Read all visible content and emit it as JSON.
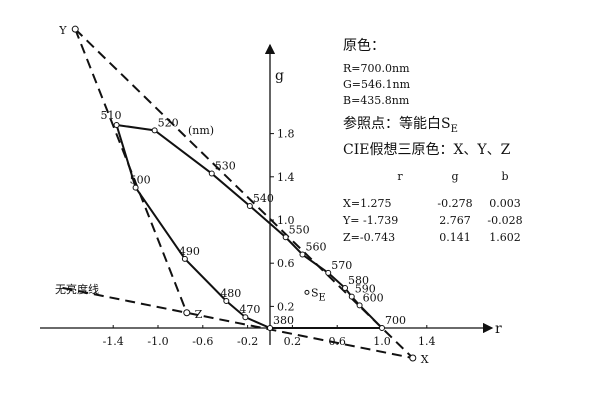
{
  "axes": {
    "x_label": "r",
    "y_label": "g",
    "xticks": [
      -1.4,
      {
        "value": -1,
        "label": "-1.0"
      },
      -0.6,
      -0.2,
      0.2,
      0.6,
      {
        "value": 1,
        "label": "1.0"
      },
      1.4
    ],
    "yticks": [
      0.2,
      0.6,
      {
        "value": 1,
        "label": "1.0"
      },
      1.4,
      1.8
    ]
  },
  "unit_label": "(nm)",
  "locus": [
    {
      "label": "380",
      "r": 0,
      "g": 0
    },
    {
      "label": "470",
      "r": -0.22,
      "g": 0.1
    },
    {
      "label": "480",
      "r": -0.39,
      "g": 0.25
    },
    {
      "label": "490",
      "r": -0.76,
      "g": 0.64
    },
    {
      "label": "500",
      "r": -1.2,
      "g": 1.3
    },
    {
      "label": "510",
      "r": -1.37,
      "g": 1.88
    },
    {
      "label": "520",
      "r": -1.03,
      "g": 1.83
    },
    {
      "label": "530",
      "r": -0.52,
      "g": 1.43
    },
    {
      "label": "540",
      "r": -0.18,
      "g": 1.13
    },
    {
      "label": "550",
      "r": 0.14,
      "g": 0.84
    },
    {
      "label": "560",
      "r": 0.29,
      "g": 0.68
    },
    {
      "label": "570",
      "r": 0.52,
      "g": 0.51
    },
    {
      "label": "580",
      "r": 0.67,
      "g": 0.37
    },
    {
      "label": "590",
      "r": 0.73,
      "g": 0.29
    },
    {
      "label": "600",
      "r": 0.8,
      "g": 0.21
    },
    {
      "label": "700",
      "r": 1,
      "g": 0
    }
  ],
  "primaries_title": "原色：",
  "primaries": [
    "R=700.0nm",
    "G=546.1nm",
    "B=435.8nm"
  ],
  "reference": {
    "text": "参照点：等能白",
    "symbol": "S",
    "subscript": "E",
    "r": 0.33,
    "g": 0.33
  },
  "cie_title": "CIE假想三原色：X、Y、Z",
  "table": {
    "header": [
      "r",
      "g",
      "b"
    ],
    "rows": [
      {
        "label": "X=",
        "name": "X",
        "r": 1.275,
        "g": -0.278,
        "b": 0.003
      },
      {
        "label": "Y= ",
        "name": "Y",
        "r": -1.739,
        "g": 2.767,
        "b": -0.028
      },
      {
        "label": "Z=",
        "name": "Z",
        "r": -0.743,
        "g": 0.141,
        "b": 1.602
      }
    ]
  },
  "alychne_label": "无亮度线"
}
